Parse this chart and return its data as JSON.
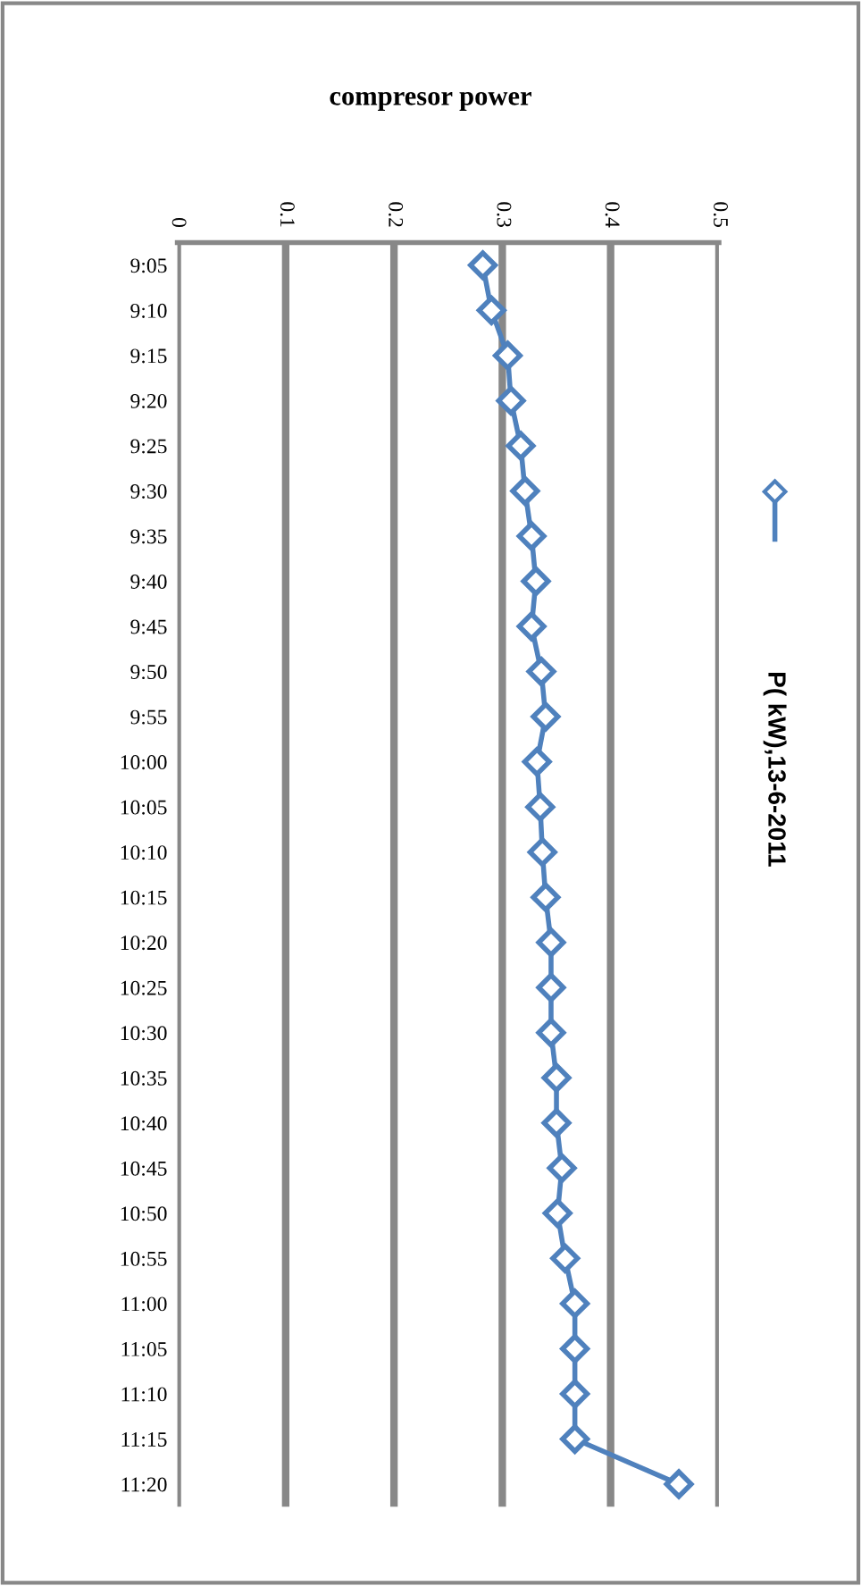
{
  "chart_data": {
    "type": "line",
    "orientation": "horizontal",
    "title": "compresor power",
    "categories": [
      "9:05",
      "9:10",
      "9:15",
      "9:20",
      "9:25",
      "9:30",
      "9:35",
      "9:40",
      "9:45",
      "9:50",
      "9:55",
      "10:00",
      "10:05",
      "10:10",
      "10:15",
      "10:20",
      "10:25",
      "10:30",
      "10:35",
      "10:40",
      "10:45",
      "10:50",
      "10:55",
      "11:00",
      "11:05",
      "11:10",
      "11:15",
      "11:20"
    ],
    "series": [
      {
        "name": "P( kW),13-6-2011",
        "color": "#4f81bd",
        "values": [
          0.282,
          0.29,
          0.305,
          0.308,
          0.317,
          0.321,
          0.327,
          0.331,
          0.327,
          0.336,
          0.34,
          0.332,
          0.335,
          0.337,
          0.34,
          0.345,
          0.345,
          0.345,
          0.35,
          0.35,
          0.355,
          0.351,
          0.358,
          0.367,
          0.367,
          0.367,
          0.367,
          0.463
        ]
      }
    ],
    "xlim": [
      0,
      0.5
    ],
    "xticks": [
      0,
      0.1,
      0.2,
      0.3,
      0.4,
      0.5
    ],
    "grid": "x",
    "legend": "right",
    "marker": "diamond",
    "line_style": "solid"
  }
}
